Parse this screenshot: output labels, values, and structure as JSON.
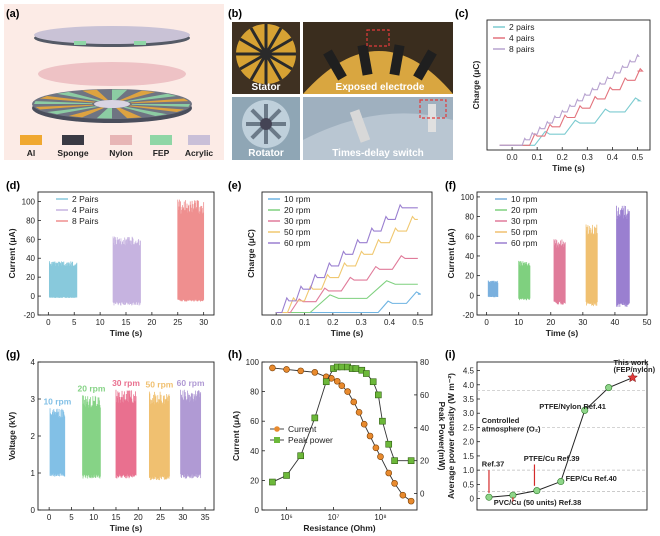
{
  "panels": {
    "a": {
      "label": "(a)"
    },
    "b": {
      "label": "(b)",
      "photo_captions": [
        "Stator",
        "Exposed electrode",
        "Rotator",
        "Times-delay switch"
      ]
    },
    "c": {
      "label": "(c)"
    },
    "d": {
      "label": "(d)"
    },
    "e": {
      "label": "(e)"
    },
    "f": {
      "label": "(f)"
    },
    "g": {
      "label": "(g)"
    },
    "h": {
      "label": "(h)"
    },
    "i": {
      "label": "(i)"
    }
  },
  "legend_a": {
    "items": [
      {
        "label": "Al",
        "color": "#f0a830"
      },
      {
        "label": "Sponge",
        "color": "#3a3a44"
      },
      {
        "label": "Nylon",
        "color": "#e7b5b5"
      },
      {
        "label": "FEP",
        "color": "#8fd6a6"
      },
      {
        "label": "Acrylic",
        "color": "#c9bfd8"
      }
    ]
  },
  "chart_data": [
    {
      "id": "c",
      "type": "line",
      "xlabel": "Time (s)",
      "ylabel": "Charge (μC)",
      "xlim": [
        -0.1,
        0.55
      ],
      "ylim": [
        -0.5,
        13.5
      ],
      "xticks": [
        0.0,
        0.1,
        0.2,
        0.3,
        0.4,
        0.5
      ],
      "xtick_labels": [
        "0.0",
        "0.1",
        "0.2",
        "0.3",
        "0.4",
        "0.5"
      ],
      "yticks": [],
      "ytick_labels": [],
      "legend_position": "top-left",
      "series": [
        {
          "name": "2 pairs",
          "color": "#7ccbd0",
          "start": 0.09,
          "period": 0.12,
          "step": 1.2,
          "steps": 4,
          "offset": 0
        },
        {
          "name": "4 pairs",
          "color": "#e3737d",
          "start": 0.07,
          "period": 0.06,
          "step": 1.0,
          "steps": 8,
          "offset": 0
        },
        {
          "name": "8 pairs",
          "color": "#b7a2cf",
          "start": 0.04,
          "period": 0.03,
          "step": 0.6,
          "steps": 20,
          "offset": 0
        }
      ]
    },
    {
      "id": "d",
      "type": "burst",
      "xlabel": "Time (s)",
      "ylabel": "Current (μA)",
      "xlim": [
        -2,
        32
      ],
      "ylim": [
        -20,
        110
      ],
      "xticks": [
        0,
        5,
        10,
        15,
        20,
        25,
        30
      ],
      "xtick_labels": [
        "0",
        "5",
        "10",
        "15",
        "20",
        "25",
        "30"
      ],
      "yticks": [
        -20,
        0,
        20,
        40,
        60,
        80,
        100
      ],
      "ytick_labels": [
        "-20",
        "0",
        "20",
        "40",
        "60",
        "80",
        "100"
      ],
      "legend_position": "top-left",
      "series": [
        {
          "name": "2 Pairs",
          "color": "#88c9dc",
          "t_start": 0.2,
          "t_end": 5.5,
          "max": 37,
          "min": -2
        },
        {
          "name": "4 Pairs",
          "color": "#c6b3e0",
          "t_start": 12.5,
          "t_end": 17.8,
          "max": 63,
          "min": -10
        },
        {
          "name": "8 Pairs",
          "color": "#ef8f8f",
          "t_start": 25,
          "t_end": 30,
          "max": 102,
          "min": -6
        }
      ]
    },
    {
      "id": "e",
      "type": "line",
      "xlabel": "Time (s)",
      "ylabel": "Charge (μC)",
      "xlim": [
        -0.05,
        0.55
      ],
      "ylim": [
        -0.3,
        14.5
      ],
      "xticks": [
        0.0,
        0.1,
        0.2,
        0.3,
        0.4,
        0.5
      ],
      "xtick_labels": [
        "0.0",
        "0.1",
        "0.2",
        "0.3",
        "0.4",
        "0.5"
      ],
      "yticks": [],
      "ytick_labels": [],
      "legend_position": "top-left",
      "series": [
        {
          "name": "10 rpm",
          "color": "#6fb4e2",
          "start": 0.36,
          "period": 0.1,
          "step": 1.1,
          "steps": 2,
          "offset": 0
        },
        {
          "name": "20 rpm",
          "color": "#7fd07f",
          "start": 0.12,
          "period": 0.2,
          "step": 1.7,
          "steps": 3,
          "offset": 0
        },
        {
          "name": "30 rpm",
          "color": "#e07b9a",
          "start": 0.05,
          "period": 0.09,
          "step": 1.3,
          "steps": 5,
          "offset": 0
        },
        {
          "name": "50 rpm",
          "color": "#f0c870",
          "start": 0.04,
          "period": 0.06,
          "step": 1.4,
          "steps": 8,
          "offset": 0
        },
        {
          "name": "60 rpm",
          "color": "#9a7fd0",
          "start": 0.02,
          "period": 0.05,
          "step": 1.4,
          "steps": 9,
          "offset": 0
        }
      ]
    },
    {
      "id": "f",
      "type": "burst",
      "xlabel": "Time (s)",
      "ylabel": "Current (μA)",
      "xlim": [
        -3,
        50
      ],
      "ylim": [
        -20,
        105
      ],
      "xticks": [
        0,
        10,
        20,
        30,
        40,
        50
      ],
      "xtick_labels": [
        "0",
        "10",
        "20",
        "30",
        "40",
        "50"
      ],
      "yticks": [
        -20,
        0,
        20,
        40,
        60,
        80,
        100
      ],
      "ytick_labels": [
        "-20",
        "0",
        "20",
        "40",
        "60",
        "80",
        "100"
      ],
      "legend_position": "top-left",
      "series": [
        {
          "name": "10 rpm",
          "color": "#7ab0de",
          "t_start": 0.5,
          "t_end": 3.5,
          "max": 15,
          "min": -2
        },
        {
          "name": "20 rpm",
          "color": "#7fd07f",
          "t_start": 10,
          "t_end": 13.5,
          "max": 35,
          "min": -5
        },
        {
          "name": "30 rpm",
          "color": "#e07b9a",
          "t_start": 21,
          "t_end": 24.5,
          "max": 57,
          "min": -10
        },
        {
          "name": "50 rpm",
          "color": "#f0c070",
          "t_start": 31,
          "t_end": 34.5,
          "max": 72,
          "min": -11
        },
        {
          "name": "60 rpm",
          "color": "#9a7fd0",
          "t_start": 40.5,
          "t_end": 44.5,
          "max": 91,
          "min": -12
        }
      ]
    },
    {
      "id": "g",
      "type": "burst",
      "xlabel": "Time (s)",
      "ylabel": "Voltage (kV)",
      "xlim": [
        -2.5,
        37
      ],
      "ylim": [
        0,
        4
      ],
      "xticks": [
        0,
        5,
        10,
        15,
        20,
        25,
        30,
        35
      ],
      "xtick_labels": [
        "0",
        "5",
        "10",
        "15",
        "20",
        "25",
        "30",
        "35"
      ],
      "yticks": [
        0,
        1,
        2,
        3,
        4
      ],
      "ytick_labels": [
        "0",
        "1",
        "2",
        "3",
        "4"
      ],
      "legend_position": "inline",
      "series": [
        {
          "name": "10 rpm",
          "color": "#82c0e6",
          "t_start": 0.2,
          "t_end": 3.5,
          "max": 2.75,
          "min": 0.9
        },
        {
          "name": "20 rpm",
          "color": "#86d386",
          "t_start": 7.5,
          "t_end": 11.5,
          "max": 3.1,
          "min": 0.85
        },
        {
          "name": "30 rpm",
          "color": "#e9708f",
          "t_start": 15,
          "t_end": 19.5,
          "max": 3.25,
          "min": 0.85
        },
        {
          "name": "50 rpm",
          "color": "#f0c070",
          "t_start": 22.5,
          "t_end": 27,
          "max": 3.2,
          "min": 0.8
        },
        {
          "name": "60 rpm",
          "color": "#b09ad4",
          "t_start": 29.5,
          "t_end": 34,
          "max": 3.25,
          "min": 0.85
        }
      ]
    },
    {
      "id": "h",
      "type": "line-dual-axis",
      "xlabel": "Resistance (Ohm)",
      "ylabel": "Current (μA)",
      "ylabel_right": "Peak Power(mW)",
      "xscale": "log",
      "xlim": [
        300000,
        600000000
      ],
      "ylim": [
        0,
        100
      ],
      "ylim_right": [
        -10,
        80
      ],
      "xticks": [
        1000000,
        10000000,
        100000000
      ],
      "xtick_labels": [
        "10⁶",
        "10⁷",
        "10⁸"
      ],
      "yticks": [
        0,
        20,
        40,
        60,
        80,
        100
      ],
      "ytick_labels": [
        "0",
        "20",
        "40",
        "60",
        "80",
        "100"
      ],
      "yticks_right": [
        0,
        20,
        40,
        60,
        80
      ],
      "ytick_labels_right": [
        "0",
        "20",
        "40",
        "60",
        "80"
      ],
      "legend_position": "top-left",
      "series": [
        {
          "name": "Current",
          "axis": "left",
          "color": "#e88a2e",
          "marker": "circle",
          "x": [
            500000,
            1000000,
            2000000,
            4000000,
            7000000,
            9000000,
            12000000,
            15000000,
            20000000,
            27000000,
            35000000,
            45000000,
            60000000,
            80000000,
            100000000,
            150000000,
            200000000,
            300000000,
            450000000
          ],
          "y": [
            96,
            95,
            94,
            93,
            90,
            89,
            87,
            84,
            80,
            73,
            66,
            58,
            50,
            42,
            36,
            25,
            18,
            10,
            6
          ]
        },
        {
          "name": "Peak power",
          "axis": "right",
          "color": "#6cb83a",
          "marker": "square",
          "x": [
            500000,
            1000000,
            2000000,
            4000000,
            7000000,
            10000000,
            12000000,
            15000000,
            20000000,
            25000000,
            30000000,
            40000000,
            50000000,
            70000000,
            90000000,
            110000000,
            150000000,
            200000000,
            450000000
          ],
          "y": [
            7,
            11,
            23,
            46,
            68,
            76,
            77,
            77,
            77,
            76,
            76,
            75,
            73,
            68,
            60,
            44,
            30,
            20,
            20
          ]
        }
      ]
    },
    {
      "id": "i",
      "type": "line",
      "ylabel": "Average power density (W m⁻²)",
      "xlim": [
        -0.5,
        6.6
      ],
      "ylim": [
        -0.4,
        4.8
      ],
      "yticks": [
        0,
        0.5,
        1.0,
        1.5,
        2.0,
        2.5,
        3.0,
        3.5,
        4.0,
        4.5
      ],
      "ytick_labels": [
        "0",
        "0.5",
        "1.0",
        "1.5",
        "2.0",
        "2.5",
        "3.0",
        "3.5",
        "4.0",
        "4.5"
      ],
      "gridlines_y": [
        0.25,
        1.0,
        2.5,
        3.8
      ],
      "series": [
        {
          "name": "power density",
          "color": "#222222",
          "marker": "circle",
          "marker_color": "#8fd68a",
          "x": [
            0,
            1,
            2,
            3,
            4,
            5,
            6
          ],
          "y": [
            0.05,
            0.12,
            0.28,
            0.6,
            3.1,
            3.9,
            4.25
          ]
        }
      ],
      "annotations": [
        {
          "text": "This work",
          "x": 5.2,
          "y": 4.7
        },
        {
          "text": "(FEP/nylon)",
          "x": 5.2,
          "y": 4.45
        },
        {
          "text": "PTFE/Nylon Ref.41",
          "x": 2.1,
          "y": 3.15
        },
        {
          "text": "Controlled",
          "x": -0.3,
          "y": 2.65
        },
        {
          "text": "atmosphere (O₂)",
          "x": -0.3,
          "y": 2.35
        },
        {
          "text": "Ref.37",
          "x": -0.3,
          "y": 1.12
        },
        {
          "text": "PTFE/Cu Ref.39",
          "x": 1.45,
          "y": 1.32
        },
        {
          "text": "FEP/Cu Ref.40",
          "x": 3.2,
          "y": 0.62
        },
        {
          "text": "PVC/Cu (50 units) Ref.38",
          "x": 0.2,
          "y": -0.22
        }
      ]
    }
  ]
}
